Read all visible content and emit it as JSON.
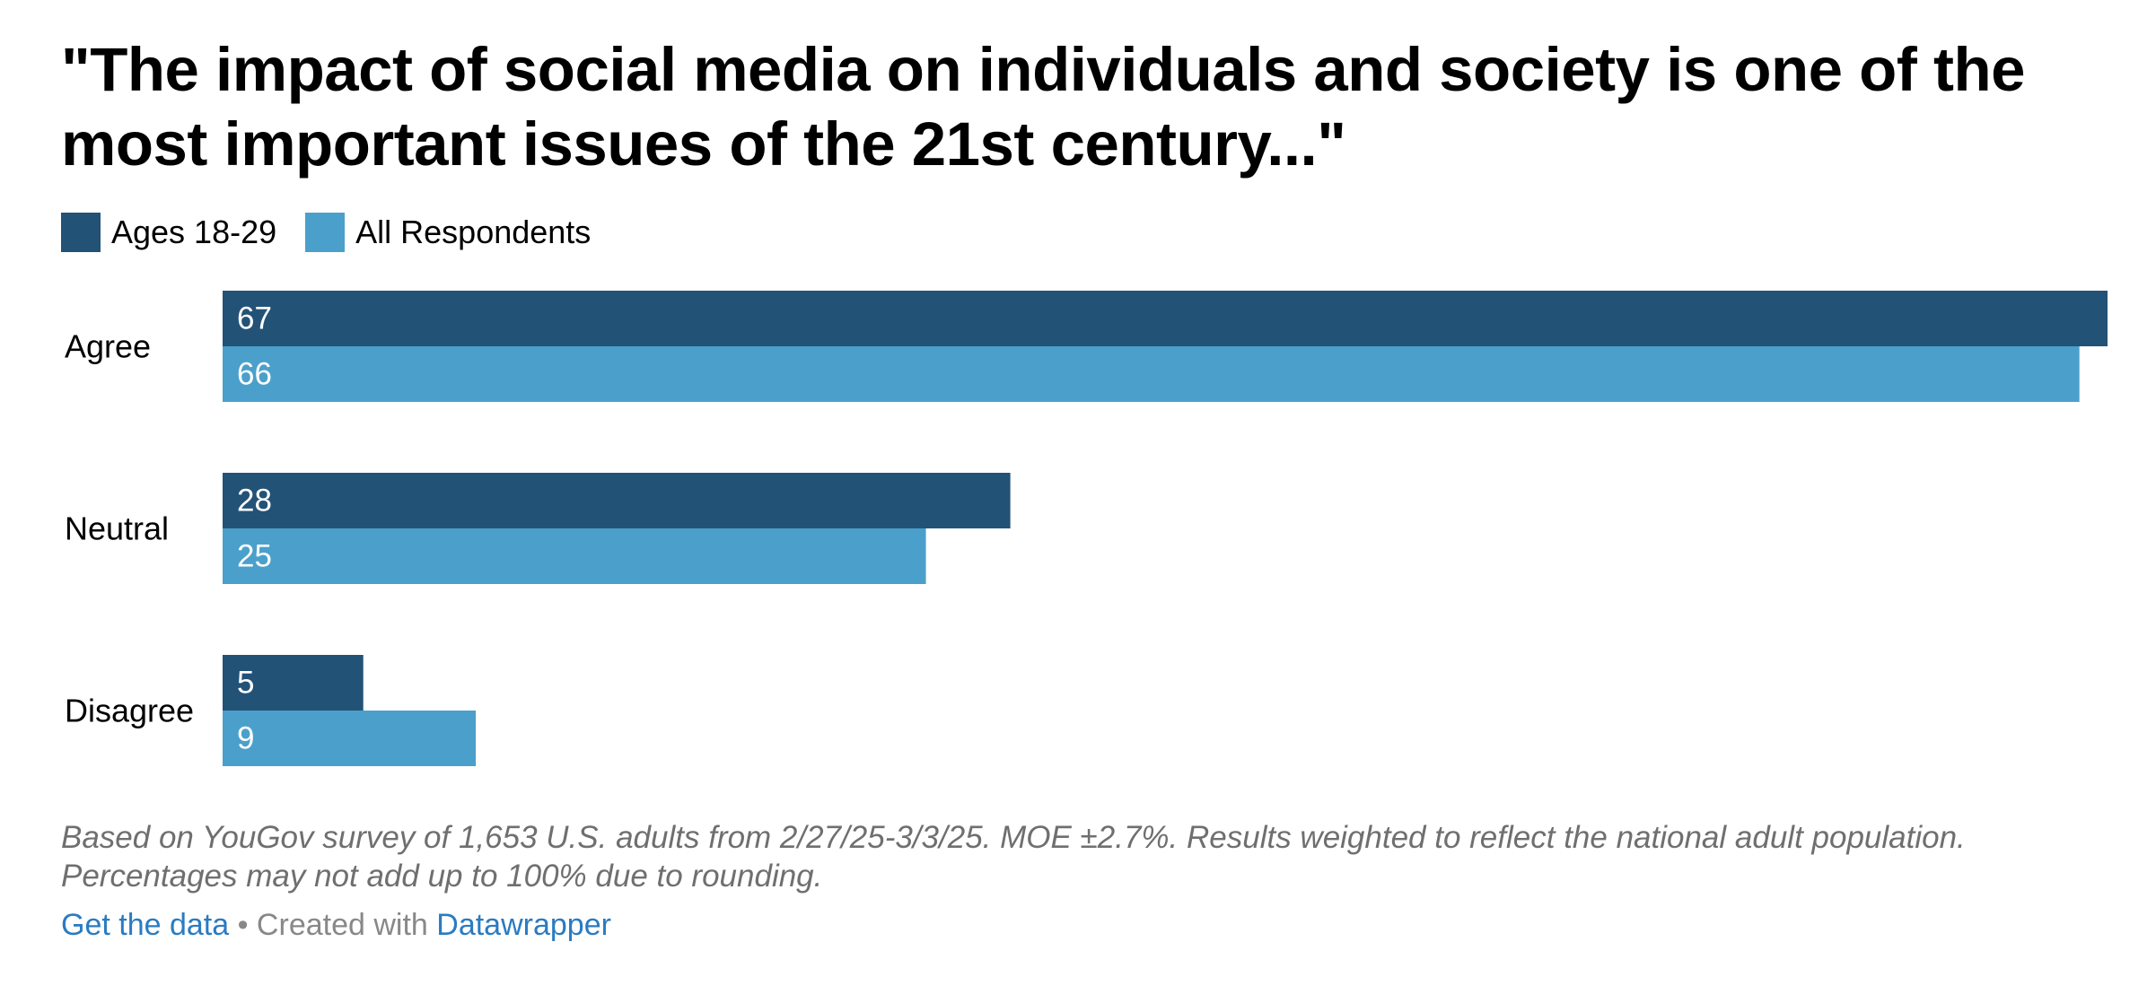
{
  "title": "\"The impact of social media on individuals and society is one of the most important issues of the 21st century...\"",
  "legend": [
    {
      "label": "Ages 18-29",
      "color": "#235277"
    },
    {
      "label": "All Respondents",
      "color": "#4ba0cb"
    }
  ],
  "chart_data": {
    "type": "bar",
    "orientation": "horizontal",
    "title": "\"The impact of social media on individuals and society is one of the most important issues of the 21st century...\"",
    "categories": [
      "Agree",
      "Neutral",
      "Disagree"
    ],
    "series": [
      {
        "name": "Ages 18-29",
        "color": "#235277",
        "values": [
          67,
          28,
          5
        ]
      },
      {
        "name": "All Respondents",
        "color": "#4ba0cb",
        "values": [
          66,
          25,
          9
        ]
      }
    ],
    "xlim": [
      0,
      67
    ],
    "grid": false,
    "legend_position": "top-left"
  },
  "notes": "Based on YouGov survey of 1,653 U.S. adults from 2/27/25-3/3/25. MOE ±2.7%. Results weighted to reflect the national adult population. Percentages may not add up to 100% due to rounding.",
  "footer": {
    "get_data": "Get the data",
    "separator": " • Created with ",
    "tool": "Datawrapper"
  }
}
